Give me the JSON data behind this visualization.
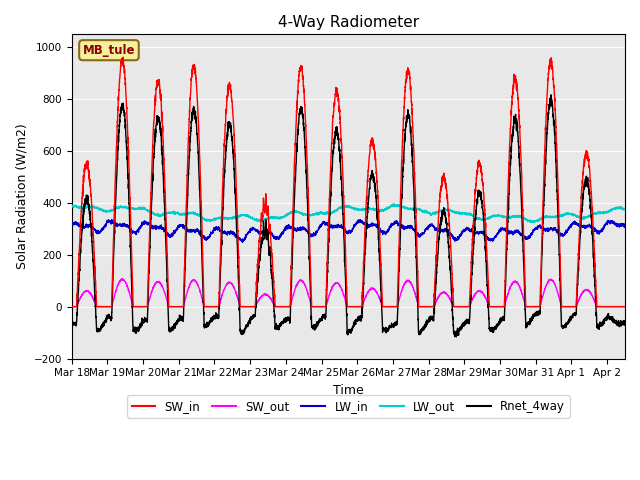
{
  "title": "4-Way Radiometer",
  "xlabel": "Time",
  "ylabel": "Solar Radiation (W/m2)",
  "station_label": "MB_tule",
  "xlim_days": [
    0,
    15.5
  ],
  "ylim": [
    -200,
    1050
  ],
  "yticks": [
    -200,
    0,
    200,
    400,
    600,
    800,
    1000
  ],
  "xtick_labels": [
    "Mar 18",
    "Mar 19",
    "Mar 20",
    "Mar 21",
    "Mar 22",
    "Mar 23",
    "Mar 24",
    "Mar 25",
    "Mar 26",
    "Mar 27",
    "Mar 28",
    "Mar 29",
    "Mar 30",
    "Mar 31",
    "Apr 1",
    "Apr 2"
  ],
  "colors": {
    "SW_in": "#ff0000",
    "SW_out": "#ff00ff",
    "LW_in": "#0000cc",
    "LW_out": "#00cccc",
    "Rnet_4way": "#000000"
  },
  "plot_bg": "#e8e8e8",
  "fig_bg": "#ffffff",
  "n_points": 4320,
  "days": 15.5,
  "sw_in_peaks": [
    0.42,
    1.42,
    2.42,
    3.42,
    4.42,
    5.42,
    6.42,
    7.42,
    8.42,
    9.42,
    10.42,
    11.42,
    12.42,
    13.42,
    14.42
  ],
  "sw_in_heights": [
    550,
    950,
    870,
    930,
    850,
    430,
    920,
    830,
    640,
    910,
    500,
    550,
    880,
    945,
    590
  ],
  "sw_in_widths": [
    0.28,
    0.3,
    0.3,
    0.29,
    0.3,
    0.28,
    0.3,
    0.3,
    0.29,
    0.3,
    0.28,
    0.28,
    0.3,
    0.3,
    0.29
  ],
  "lw_in_base": 295,
  "lw_out_base": 360
}
